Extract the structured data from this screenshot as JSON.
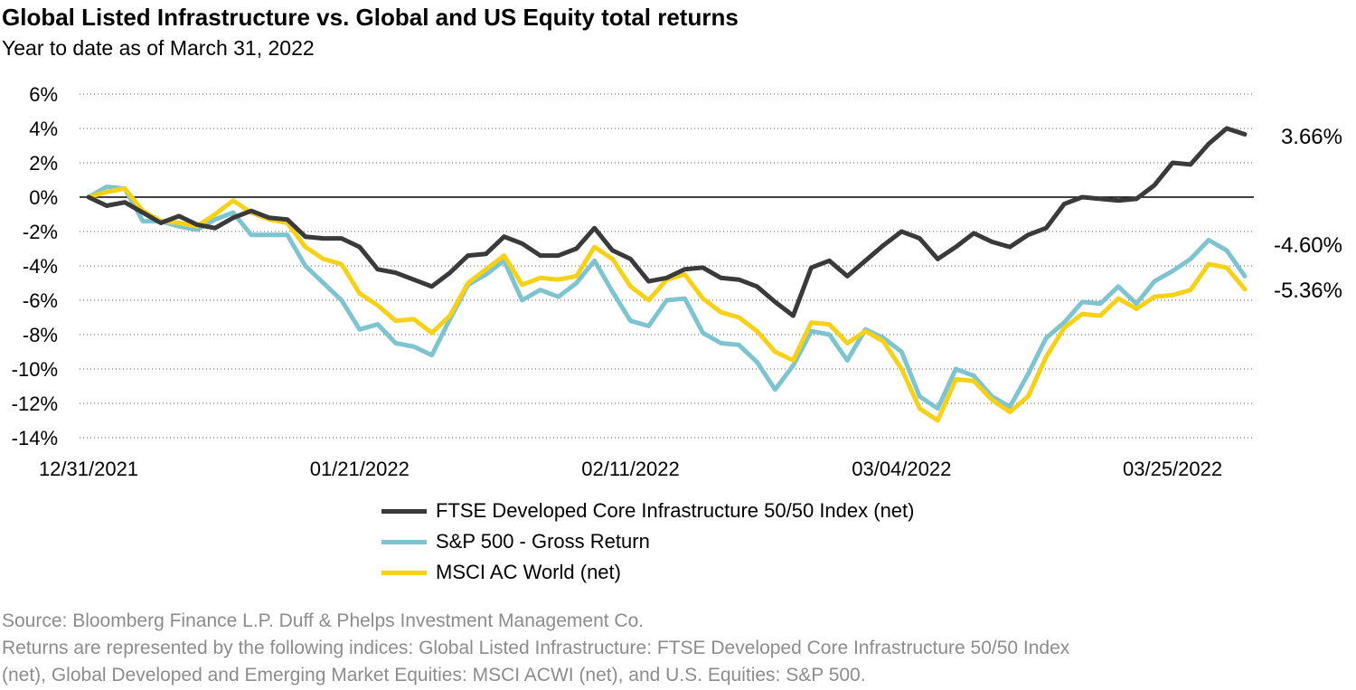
{
  "chart_data": {
    "type": "line",
    "title": "Global Listed Infrastructure vs. Global and US Equity total returns",
    "subtitle": "Year to date as of March 31, 2022",
    "x_tick_labels": [
      "12/31/2021",
      "01/21/2022",
      "02/11/2022",
      "03/04/2022",
      "03/25/2022"
    ],
    "x_tick_index": [
      0,
      15,
      30,
      45,
      60
    ],
    "y_tick_labels": [
      "6%",
      "4%",
      "2%",
      "0%",
      "-2%",
      "-4%",
      "-6%",
      "-8%",
      "-10%",
      "-12%",
      "-14%"
    ],
    "ylim": [
      -14,
      6
    ],
    "y_step": 2,
    "grid": "horizontal dotted",
    "zero_line": true,
    "legend_position": "bottom",
    "series": [
      {
        "name": "FTSE Developed Core Infrastructure 50/50 Index (net)",
        "color": "#3a3a3a",
        "end_label": "3.66%",
        "values": [
          0,
          -0.5,
          -0.3,
          -0.9,
          -1.5,
          -1.1,
          -1.6,
          -1.8,
          -1.2,
          -0.8,
          -1.2,
          -1.3,
          -2.3,
          -2.4,
          -2.4,
          -2.9,
          -4.2,
          -4.4,
          -4.8,
          -5.2,
          -4.4,
          -3.4,
          -3.3,
          -2.3,
          -2.7,
          -3.4,
          -3.4,
          -3.0,
          -1.8,
          -3.1,
          -3.6,
          -4.9,
          -4.7,
          -4.2,
          -4.1,
          -4.7,
          -4.8,
          -5.2,
          -6.1,
          -6.9,
          -4.1,
          -3.7,
          -4.6,
          -3.7,
          -2.8,
          -2.0,
          -2.4,
          -3.6,
          -2.9,
          -2.1,
          -2.6,
          -2.9,
          -2.2,
          -1.8,
          -0.4,
          0.0,
          -0.1,
          -0.2,
          -0.1,
          0.7,
          2.0,
          1.9,
          3.1,
          4.0,
          3.66
        ]
      },
      {
        "name": "S&P 500 - Gross Return",
        "color": "#7ec4d0",
        "end_label": "-4.60%",
        "values": [
          0,
          0.6,
          0.5,
          -1.4,
          -1.4,
          -1.7,
          -1.9,
          -1.3,
          -0.9,
          -2.2,
          -2.2,
          -2.2,
          -4.0,
          -5.0,
          -6.0,
          -7.7,
          -7.4,
          -8.5,
          -8.7,
          -9.2,
          -7.1,
          -5.1,
          -4.5,
          -3.7,
          -6.0,
          -5.4,
          -5.8,
          -5.0,
          -3.7,
          -5.5,
          -7.2,
          -7.5,
          -6.0,
          -5.9,
          -7.9,
          -8.5,
          -8.6,
          -9.6,
          -11.2,
          -9.8,
          -7.8,
          -8.0,
          -9.5,
          -7.7,
          -8.2,
          -9.0,
          -11.6,
          -12.3,
          -10.0,
          -10.4,
          -11.6,
          -12.2,
          -10.3,
          -8.2,
          -7.3,
          -6.1,
          -6.2,
          -5.2,
          -6.2,
          -4.9,
          -4.3,
          -3.6,
          -2.5,
          -3.1,
          -4.6
        ]
      },
      {
        "name": "MSCI AC World (net)",
        "color": "#f7d117",
        "end_label": "-5.36%",
        "values": [
          0,
          0.3,
          0.5,
          -0.8,
          -1.4,
          -1.5,
          -1.7,
          -1.0,
          -0.2,
          -0.9,
          -1.3,
          -1.5,
          -2.9,
          -3.6,
          -3.9,
          -5.6,
          -6.3,
          -7.2,
          -7.1,
          -7.9,
          -6.9,
          -5.0,
          -4.2,
          -3.4,
          -5.1,
          -4.7,
          -4.8,
          -4.6,
          -2.9,
          -3.6,
          -5.2,
          -6.0,
          -4.8,
          -4.5,
          -5.9,
          -6.7,
          -7.0,
          -7.8,
          -9.0,
          -9.5,
          -7.3,
          -7.4,
          -8.5,
          -7.8,
          -8.4,
          -10.0,
          -12.3,
          -13.0,
          -10.6,
          -10.7,
          -11.8,
          -12.5,
          -11.6,
          -9.3,
          -7.6,
          -6.8,
          -6.9,
          -5.9,
          -6.5,
          -5.8,
          -5.7,
          -5.4,
          -3.9,
          -4.1,
          -5.36
        ]
      }
    ]
  },
  "legend": {
    "items": [
      {
        "label": "FTSE Developed Core Infrastructure 50/50 Index (net)",
        "color": "#3a3a3a"
      },
      {
        "label": "S&P 500 - Gross Return",
        "color": "#7ec4d0"
      },
      {
        "label": "MSCI AC World (net)",
        "color": "#f7d117"
      }
    ]
  },
  "source": {
    "line1": "Source: Bloomberg Finance L.P. Duff & Phelps Investment Management Co.",
    "line2": "Returns are represented by the following indices: Global Listed Infrastructure: FTSE Developed Core Infrastructure 50/50 Index",
    "line3": "(net), Global Developed and Emerging Market Equities: MSCI ACWI (net), and U.S. Equities: S&P 500."
  }
}
